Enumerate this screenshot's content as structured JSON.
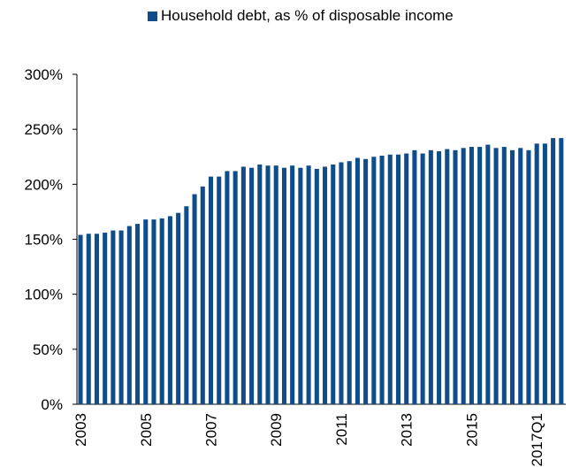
{
  "chart_data": {
    "type": "bar",
    "legend": {
      "position": "top",
      "entries": [
        "Household debt, as % of disposable income"
      ]
    },
    "series": [
      {
        "name": "Household debt, as % of disposable income",
        "color": "#0F4D8A",
        "values": [
          154,
          155,
          155,
          156,
          158,
          158,
          162,
          164,
          168,
          168,
          169,
          171,
          174,
          180,
          191,
          198,
          207,
          207,
          212,
          212,
          216,
          215,
          218,
          217,
          217,
          215,
          217,
          215,
          217,
          214,
          216,
          218,
          220,
          221,
          224,
          223,
          225,
          226,
          227,
          227,
          228,
          231,
          228,
          231,
          230,
          232,
          231,
          233,
          234,
          234,
          236,
          233,
          234,
          231,
          233,
          231,
          237,
          237,
          242,
          242
        ]
      }
    ],
    "x_tick_labels": [
      "2003",
      "2005",
      "2007",
      "2009",
      "2011",
      "2013",
      "2015",
      "2017Q1"
    ],
    "y_ticks": [
      "0%",
      "50%",
      "100%",
      "150%",
      "200%",
      "250%",
      "300%"
    ],
    "ylim": [
      0,
      300
    ],
    "y_unit": "%",
    "grid": false
  }
}
